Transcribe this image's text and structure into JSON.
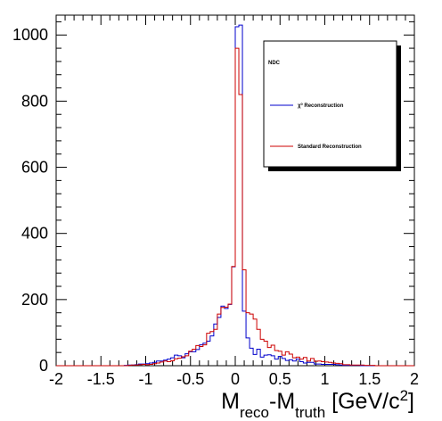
{
  "chart_data": {
    "type": "line",
    "style": "step-histogram",
    "xlim": [
      -2,
      2
    ],
    "ylim": [
      0,
      1060
    ],
    "grid": false,
    "legend_placement": "top-right",
    "x_tick_labels": [
      "-2",
      "-1.5",
      "-1",
      "-0.5",
      "0",
      "0.5",
      "1",
      "1.5",
      "2"
    ],
    "y_tick_labels": [
      "0",
      "200",
      "400",
      "600",
      "800",
      "1000"
    ],
    "xlabel": {
      "parts": [
        {
          "text": "M",
          "style": "normal"
        },
        {
          "text": "reco",
          "style": "sub"
        },
        {
          "text": "-M",
          "style": "normal"
        },
        {
          "text": "truth",
          "style": "sub"
        },
        {
          "text": " [GeV/c",
          "style": "normal"
        },
        {
          "text": "2",
          "style": "sup"
        },
        {
          "text": "]",
          "style": "normal"
        }
      ]
    },
    "legend": {
      "header": "NDC",
      "entries": [
        {
          "series_index": 0,
          "parts": [
            {
              "text": "χ",
              "style": "normal"
            },
            {
              "text": "0",
              "style": "sup"
            },
            {
              "text": " Reconstruction",
              "style": "normal"
            }
          ]
        },
        {
          "series_index": 1,
          "parts": [
            {
              "text": "Standard Reconstruction",
              "style": "normal"
            }
          ]
        }
      ]
    },
    "bin_start": -2.0,
    "bin_width": 0.04,
    "series": [
      {
        "color": "#0000cc",
        "values": [
          0,
          0,
          0,
          0,
          0,
          0,
          0,
          0,
          0,
          0,
          0,
          0,
          0,
          0,
          0,
          0,
          0,
          0,
          0,
          1,
          2,
          2,
          3,
          5,
          5,
          6,
          8,
          10,
          14,
          14,
          17,
          20,
          24,
          32,
          30,
          24,
          36,
          42,
          42,
          49,
          63,
          68,
          74,
          90,
          126,
          146,
          180,
          173,
          185,
          299,
          1025,
          1030,
          165,
          84,
          53,
          34,
          50,
          26,
          32,
          33,
          30,
          20,
          28,
          22,
          16,
          18,
          14,
          20,
          12,
          8,
          10,
          10,
          5,
          5,
          4,
          4,
          4,
          4,
          3,
          2,
          1,
          1,
          1,
          1,
          1,
          0,
          0,
          0,
          0,
          0,
          0,
          0,
          0,
          0,
          0,
          0,
          0,
          0,
          0,
          0
        ]
      },
      {
        "color": "#cc0000",
        "values": [
          0,
          0,
          0,
          0,
          0,
          0,
          0,
          0,
          0,
          0,
          0,
          0,
          0,
          0,
          0,
          0,
          0,
          0,
          0,
          0,
          1,
          2,
          2,
          3,
          4,
          3,
          4,
          6,
          8,
          11,
          14,
          12,
          15,
          21,
          23,
          27,
          30,
          44,
          50,
          61,
          58,
          63,
          98,
          103,
          110,
          156,
          176,
          177,
          186,
          300,
          960,
          820,
          290,
          160,
          156,
          141,
          110,
          80,
          74,
          55,
          62,
          46,
          44,
          32,
          42,
          35,
          24,
          26,
          20,
          25,
          14,
          22,
          13,
          14,
          12,
          11,
          10,
          8,
          7,
          6,
          3,
          3,
          2,
          2,
          2,
          2,
          1,
          1,
          1,
          0,
          0,
          0,
          0,
          0,
          0,
          0,
          0,
          0,
          0,
          0
        ]
      }
    ]
  }
}
